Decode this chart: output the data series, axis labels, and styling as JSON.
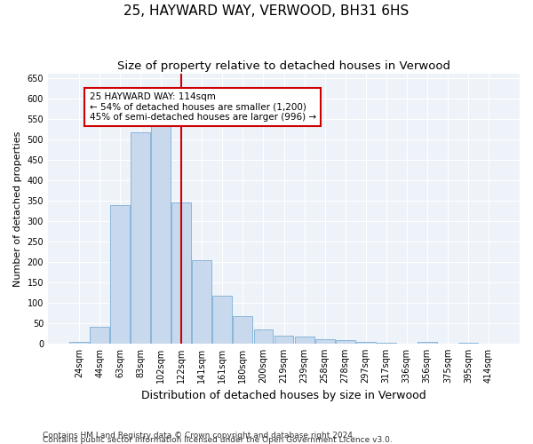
{
  "title1": "25, HAYWARD WAY, VERWOOD, BH31 6HS",
  "title2": "Size of property relative to detached houses in Verwood",
  "xlabel": "Distribution of detached houses by size in Verwood",
  "ylabel": "Number of detached properties",
  "footnote1": "Contains HM Land Registry data © Crown copyright and database right 2024.",
  "footnote2": "Contains public sector information licensed under the Open Government Licence v3.0.",
  "categories": [
    "24sqm",
    "44sqm",
    "63sqm",
    "83sqm",
    "102sqm",
    "122sqm",
    "141sqm",
    "161sqm",
    "180sqm",
    "200sqm",
    "219sqm",
    "239sqm",
    "258sqm",
    "278sqm",
    "297sqm",
    "317sqm",
    "336sqm",
    "356sqm",
    "375sqm",
    "395sqm",
    "414sqm"
  ],
  "values": [
    5,
    42,
    338,
    517,
    535,
    345,
    203,
    118,
    67,
    35,
    20,
    17,
    11,
    9,
    5,
    3,
    0,
    5,
    0,
    3,
    0
  ],
  "bar_color": "#c8d9ee",
  "bar_edge_color": "#7bafd4",
  "vline_color": "#cc0000",
  "vline_pos": 4.97,
  "annotation_text": "25 HAYWARD WAY: 114sqm\n← 54% of detached houses are smaller (1,200)\n45% of semi-detached houses are larger (996) →",
  "annotation_box_color": "white",
  "annotation_box_edge": "#cc0000",
  "ylim": [
    0,
    660
  ],
  "yticks": [
    0,
    50,
    100,
    150,
    200,
    250,
    300,
    350,
    400,
    450,
    500,
    550,
    600,
    650
  ],
  "bg_color": "#eef2f9",
  "grid_color": "white",
  "title1_fontsize": 11,
  "title2_fontsize": 9.5,
  "xlabel_fontsize": 9,
  "ylabel_fontsize": 8,
  "tick_fontsize": 7,
  "annot_fontsize": 7.5,
  "footnote_fontsize": 6.5
}
